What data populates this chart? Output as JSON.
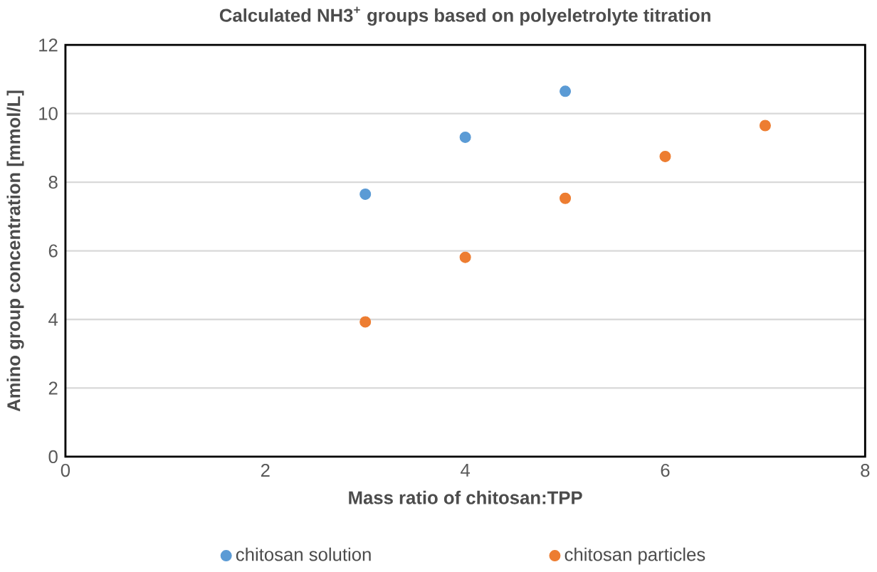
{
  "chart_data": {
    "type": "scatter",
    "title": "Calculated NH3$^{+}$ groups based on polyeletrolyte titration",
    "xlabel": "Mass ratio of chitosan:TPP",
    "ylabel": "Amino group concentration [mmol/L]",
    "series": [
      {
        "name": "chitosan solution",
        "color": "#5b9bd5",
        "x": [
          3,
          4,
          5
        ],
        "values": [
          7.65,
          9.31,
          10.65
        ]
      },
      {
        "name": "chitosan particles",
        "color": "#ed7d31",
        "x": [
          3,
          4,
          5,
          6,
          7
        ],
        "values": [
          3.93,
          5.81,
          7.53,
          8.75,
          9.65
        ]
      }
    ],
    "xlim": [
      0,
      8
    ],
    "xticks": [
      0,
      2,
      4,
      6,
      8
    ],
    "ylim": [
      0,
      12
    ],
    "yticks": [
      0,
      2,
      4,
      6,
      8,
      10,
      12
    ],
    "grid": "y",
    "legend": "bottom",
    "marker": "circle"
  }
}
